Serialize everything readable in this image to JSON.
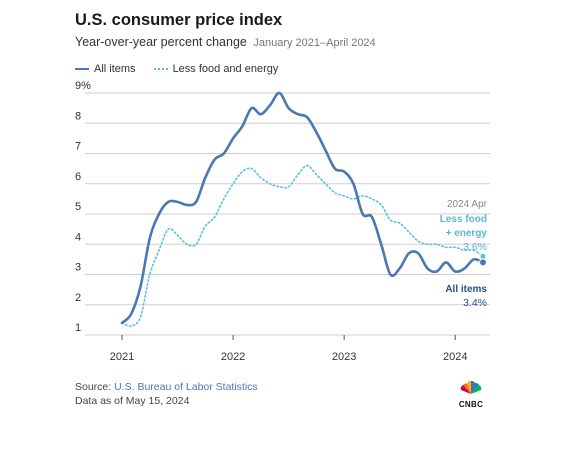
{
  "title": "U.S. consumer price index",
  "subtitle": "Year-over-year percent change",
  "date_range": "January 2021–April 2024",
  "legend": {
    "all_items": "All items",
    "core": "Less food and energy"
  },
  "annotations": {
    "period": "2024 Apr",
    "core_label_line1": "Less food",
    "core_label_line2": "+ energy",
    "core_value": "3.6%",
    "all_label": "All items",
    "all_value": "3.4%"
  },
  "source": {
    "prefix": "Source: ",
    "name": "U.S. Bureau of Labor Statistics",
    "date_note": "Data as of May 15, 2024"
  },
  "logo": {
    "text": "CNBC",
    "icon": "cnbc-peacock-icon"
  },
  "colors": {
    "all_items": "#4a78b3",
    "core": "#5bc0de",
    "grid": "#cfcfcf"
  },
  "chart_data": {
    "type": "line",
    "x": [
      "2021-01",
      "2021-02",
      "2021-03",
      "2021-04",
      "2021-05",
      "2021-06",
      "2021-07",
      "2021-08",
      "2021-09",
      "2021-10",
      "2021-11",
      "2021-12",
      "2022-01",
      "2022-02",
      "2022-03",
      "2022-04",
      "2022-05",
      "2022-06",
      "2022-07",
      "2022-08",
      "2022-09",
      "2022-10",
      "2022-11",
      "2022-12",
      "2023-01",
      "2023-02",
      "2023-03",
      "2023-04",
      "2023-05",
      "2023-06",
      "2023-07",
      "2023-08",
      "2023-09",
      "2023-10",
      "2023-11",
      "2023-12",
      "2024-01",
      "2024-02",
      "2024-03",
      "2024-04"
    ],
    "series": [
      {
        "name": "All items",
        "values": [
          1.4,
          1.7,
          2.6,
          4.2,
          5.0,
          5.4,
          5.4,
          5.3,
          5.4,
          6.2,
          6.8,
          7.0,
          7.5,
          7.9,
          8.5,
          8.3,
          8.6,
          9.0,
          8.5,
          8.3,
          8.2,
          7.7,
          7.1,
          6.5,
          6.4,
          6.0,
          5.0,
          4.9,
          4.0,
          3.0,
          3.2,
          3.7,
          3.7,
          3.2,
          3.1,
          3.4,
          3.1,
          3.2,
          3.5,
          3.4
        ]
      },
      {
        "name": "Less food and energy",
        "values": [
          1.4,
          1.3,
          1.6,
          3.0,
          3.8,
          4.5,
          4.3,
          4.0,
          4.0,
          4.6,
          4.9,
          5.5,
          6.0,
          6.4,
          6.5,
          6.2,
          6.0,
          5.9,
          5.9,
          6.3,
          6.6,
          6.3,
          6.0,
          5.7,
          5.6,
          5.5,
          5.6,
          5.5,
          5.3,
          4.8,
          4.7,
          4.4,
          4.1,
          4.0,
          4.0,
          3.9,
          3.9,
          3.8,
          3.8,
          3.6
        ]
      }
    ],
    "x_ticks": [
      "2021",
      "2022",
      "2023",
      "2024"
    ],
    "y_ticks": [
      "1",
      "2",
      "3",
      "4",
      "5",
      "6",
      "7",
      "8",
      "9%"
    ],
    "ylim": [
      1,
      9
    ],
    "grid": true,
    "legend_position": "top-left"
  }
}
